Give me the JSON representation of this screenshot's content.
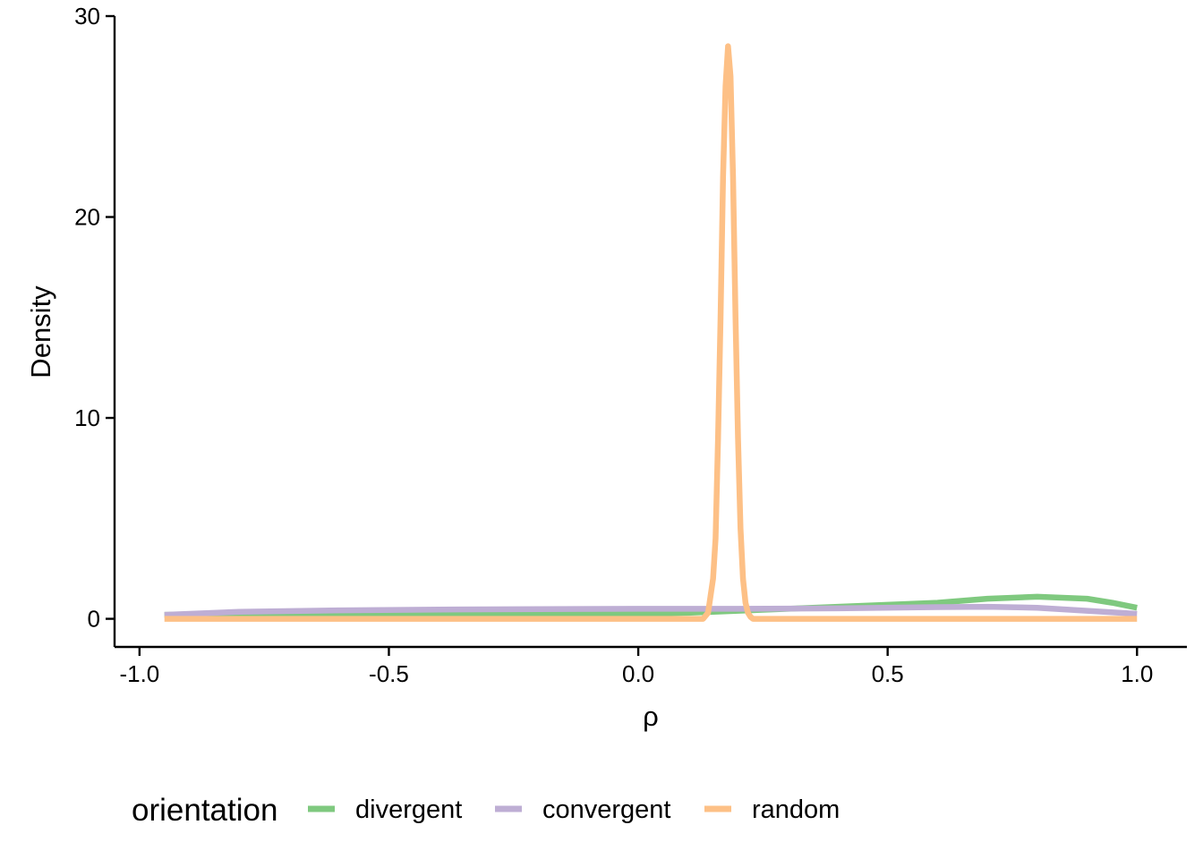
{
  "chart_data": {
    "type": "line",
    "xlabel": "ρ",
    "ylabel": "Density",
    "xlim": [
      -1.05,
      1.1
    ],
    "ylim": [
      -1.4,
      30
    ],
    "x_ticks": [
      -1.0,
      -0.5,
      0.0,
      0.5,
      1.0
    ],
    "x_tick_labels": [
      "-1.0",
      "-0.5",
      "0.0",
      "0.5",
      "1.0"
    ],
    "y_ticks": [
      0,
      10,
      20,
      30
    ],
    "y_tick_labels": [
      "0",
      "10",
      "20",
      "30"
    ],
    "grid": false,
    "legend": {
      "title": "orientation",
      "position": "bottom"
    },
    "series": [
      {
        "name": "divergent",
        "color": "#7fc97f",
        "x": [
          -0.95,
          -0.8,
          -0.6,
          -0.4,
          -0.2,
          0.0,
          0.1,
          0.2,
          0.3,
          0.4,
          0.5,
          0.6,
          0.7,
          0.8,
          0.9,
          0.95,
          1.0
        ],
        "y": [
          0.2,
          0.25,
          0.25,
          0.25,
          0.25,
          0.25,
          0.3,
          0.4,
          0.5,
          0.6,
          0.7,
          0.8,
          1.0,
          1.1,
          1.0,
          0.8,
          0.55
        ]
      },
      {
        "name": "convergent",
        "color": "#beaed4",
        "x": [
          -0.95,
          -0.8,
          -0.6,
          -0.4,
          -0.2,
          0.0,
          0.2,
          0.4,
          0.6,
          0.7,
          0.8,
          0.9,
          1.0
        ],
        "y": [
          0.2,
          0.35,
          0.42,
          0.46,
          0.48,
          0.5,
          0.5,
          0.52,
          0.58,
          0.6,
          0.55,
          0.4,
          0.25
        ]
      },
      {
        "name": "random",
        "color": "#fdc086",
        "x": [
          -0.95,
          0.0,
          0.13,
          0.14,
          0.15,
          0.155,
          0.16,
          0.165,
          0.17,
          0.175,
          0.18,
          0.185,
          0.19,
          0.195,
          0.2,
          0.205,
          0.21,
          0.215,
          0.22,
          0.225,
          0.23,
          0.24,
          0.25,
          0.5,
          1.0
        ],
        "y": [
          0.0,
          0.0,
          0.0,
          0.3,
          2.0,
          4.0,
          9.0,
          15.0,
          22.0,
          26.5,
          28.5,
          27.0,
          22.0,
          15.0,
          9.0,
          4.5,
          2.0,
          0.8,
          0.3,
          0.1,
          0.0,
          0.0,
          0.0,
          0.0,
          0.0
        ]
      }
    ]
  }
}
